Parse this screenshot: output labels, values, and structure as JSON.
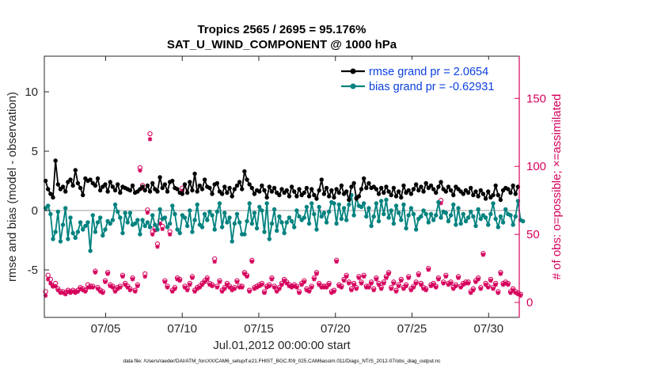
{
  "chart_data": {
    "type": "line",
    "title_line1": "Tropics 2565 / 2695 = 95.176%",
    "title_line2": "SAT_U_WIND_COMPONENT @ 1000 hPa",
    "xlabel": "Jul.01,2012 00:00:00 start",
    "ylabel_left": "rmse and bias (model - observation)",
    "ylabel_right": "# of obs: o=possible; ×=assimilated",
    "footer": "data file: /Users/raeder/DAI/ATM_forcXX/CAM6_setup/f.e21.FHIST_BGC.f09_025.CAM6assim.011/Diags_NTrS_2012-07/obs_diag_output.nc",
    "xlim": [
      1.0,
      32.0
    ],
    "ylim_left": [
      -9.0,
      13.0
    ],
    "ylim_right": [
      -11.0,
      181.0
    ],
    "x_ticks": [
      5,
      10,
      15,
      20,
      25,
      30
    ],
    "x_tick_labels": [
      "07/05",
      "07/10",
      "07/15",
      "07/20",
      "07/25",
      "07/30"
    ],
    "y_left_ticks": [
      -5,
      0,
      5,
      10
    ],
    "y_left_tick_labels": [
      "-5",
      "0",
      "5",
      "10"
    ],
    "y_right_ticks": [
      0,
      50,
      100,
      150
    ],
    "y_right_tick_labels": [
      "0",
      "50",
      "100",
      "150"
    ],
    "zero_line": true,
    "legend": [
      {
        "label": "rmse grand pr = 2.0654",
        "series": "rmse"
      },
      {
        "label": "bias grand pr = -0.62931",
        "series": "bias"
      }
    ],
    "colors": {
      "rmse": "#000000",
      "bias": "#00827f",
      "obs": "#d6005c",
      "axis": "#262626",
      "legend_text": "#0a3fe0",
      "zero_line": "#bdbdbd"
    },
    "series": [
      {
        "name": "rmse",
        "values": [
          2.5,
          1.8,
          1.4,
          1.1,
          4.2,
          2.2,
          1.8,
          2.0,
          1.6,
          2.4,
          2.6,
          2.1,
          3.4,
          2.3,
          1.9,
          1.3,
          2.7,
          2.5,
          2.6,
          2.3,
          2.1,
          2.7,
          1.7,
          2.0,
          2.2,
          1.6,
          2.4,
          2.0,
          1.7,
          2.2,
          1.5,
          2.0,
          1.9,
          1.8,
          1.7,
          2.1,
          1.5,
          1.6,
          1.8,
          2.0,
          1.7,
          2.1,
          1.6,
          2.3,
          1.8,
          1.6,
          2.8,
          1.9,
          2.2,
          1.6,
          2.4,
          2.5,
          1.9,
          1.8,
          1.5,
          1.4,
          2.2,
          1.5,
          2.4,
          1.7,
          3.1,
          1.6,
          2.1,
          1.8,
          2.6,
          2.0,
          1.9,
          1.4,
          2.2,
          2.3,
          1.6,
          1.4,
          2.0,
          1.5,
          1.9,
          1.2,
          1.8,
          2.1,
          2.4,
          1.8,
          3.3,
          2.6,
          2.2,
          1.9,
          1.4,
          1.7,
          1.6,
          2.1,
          1.7,
          1.1,
          2.0,
          1.6,
          1.9,
          1.5,
          1.3,
          1.8,
          1.5,
          1.7,
          1.2,
          2.0,
          1.6,
          1.2,
          1.8,
          1.3,
          1.5,
          1.9,
          1.2,
          1.8,
          1.3,
          1.0,
          1.7,
          2.6,
          1.4,
          1.9,
          1.2,
          1.7,
          1.1,
          1.8,
          1.5,
          2.1,
          1.4,
          1.6,
          0.9,
          2.0,
          2.3,
          1.0,
          1.2,
          1.8,
          2.7,
          1.9,
          2.3,
          1.9,
          2.0,
          1.8,
          1.4,
          1.9,
          1.5,
          2.0,
          1.6,
          1.3,
          1.9,
          1.2,
          1.6,
          1.1,
          2.1,
          1.5,
          1.7,
          1.4,
          1.8,
          2.2,
          1.7,
          2.0,
          1.6,
          2.3,
          1.9,
          2.1,
          1.8,
          1.5,
          2.0,
          2.4,
          1.8,
          1.6,
          2.0,
          1.7,
          1.3,
          2.0,
          1.8,
          1.6,
          1.4,
          1.7,
          1.5,
          1.9,
          1.3,
          1.6,
          1.2,
          1.7,
          1.4,
          1.0,
          1.6,
          1.1,
          1.3,
          2.1,
          1.3,
          0.9,
          1.7,
          1.9,
          1.8,
          1.5,
          2.1,
          1.4,
          2.0
        ]
      },
      {
        "name": "bias",
        "values": [
          0.2,
          0.4,
          -0.3,
          -2.4,
          -1.8,
          -0.1,
          -2.6,
          -1.2,
          0.2,
          -2.4,
          -0.6,
          -1.9,
          -2.3,
          -1.8,
          -1.0,
          -1.6,
          -1.3,
          -1.0,
          -3.4,
          -0.4,
          -1.8,
          -1.0,
          -0.6,
          -2.1,
          -1.6,
          -0.9,
          -1.1,
          -0.8,
          0.5,
          -0.1,
          -0.6,
          -1.9,
          -0.2,
          -1.0,
          -0.2,
          -1.2,
          -1.1,
          -0.8,
          -2.0,
          -0.8,
          -1.3,
          -1.0,
          -1.4,
          -0.4,
          -1.2,
          -1.6,
          0.1,
          -0.7,
          -0.6,
          -1.4,
          -1.1,
          0.4,
          -0.3,
          -1.6,
          -1.9,
          -0.4,
          -0.6,
          -1.3,
          0.0,
          -1.8,
          -0.8,
          0.5,
          -1.2,
          -1.4,
          -0.3,
          -0.8,
          -0.1,
          -0.4,
          -1.6,
          -0.1,
          0.6,
          -1.4,
          -0.2,
          -1.0,
          -0.6,
          -2.6,
          -1.1,
          -0.3,
          -1.0,
          -2.0,
          -2.0,
          -0.9,
          0.6,
          -1.1,
          -0.2,
          -1.5,
          0.3,
          0.0,
          -1.8,
          0.6,
          -2.4,
          -1.1,
          0.1,
          -1.7,
          -0.5,
          -1.0,
          -1.9,
          -1.0,
          -0.6,
          -0.9,
          -1.4,
          0.0,
          -0.5,
          -0.8,
          -0.6,
          0.3,
          -1.1,
          0.6,
          -0.3,
          -1.6,
          0.3,
          -0.5,
          -0.2,
          -1.0,
          -0.1,
          0.7,
          0.6,
          -1.1,
          0.5,
          -0.7,
          0.2,
          -0.8,
          0.5,
          1.3,
          -0.4,
          1.1,
          0.4,
          0.3,
          0.6,
          -0.5,
          0.2,
          -1.3,
          -0.5,
          0.6,
          -0.9,
          0.8,
          -0.3,
          0.9,
          -0.6,
          0.0,
          -1.1,
          0.4,
          -0.2,
          -0.8,
          0.5,
          -1.5,
          -0.4,
          0.2,
          -0.3,
          -1.6,
          -0.7,
          -0.5,
          0.0,
          -0.3,
          -1.0,
          -0.3,
          -0.8,
          -0.4,
          0.7,
          -0.6,
          -0.1,
          -0.2,
          -0.9,
          -0.4,
          0.5,
          -1.2,
          0.2,
          -1.1,
          -0.3,
          -0.9,
          -0.6,
          -0.1,
          -0.5,
          -1.3,
          0.1,
          -0.7,
          -0.4,
          -0.6,
          -1.2,
          -0.3,
          0.6,
          -0.7,
          -1.4,
          -0.5,
          -1.0,
          0.1,
          -0.3,
          -0.4,
          -1.2,
          -0.5,
          0.8,
          -0.8,
          -0.9
        ]
      },
      {
        "name": "obs_possible",
        "values": [
          8,
          20,
          17,
          12,
          14,
          10,
          8,
          8,
          7,
          9,
          8,
          9,
          8,
          9,
          11,
          10,
          9,
          13,
          12,
          12,
          23,
          11,
          9,
          8,
          16,
          22,
          13,
          12,
          9,
          11,
          12,
          20,
          14,
          12,
          10,
          18,
          9,
          13,
          99,
          86,
          21,
          68,
          124,
          52,
          55,
          43,
          60,
          56,
          16,
          12,
          52,
          9,
          11,
          18,
          17,
          84,
          12,
          10,
          14,
          19,
          9,
          11,
          12,
          14,
          16,
          18,
          14,
          13,
          32,
          12,
          16,
          9,
          11,
          14,
          12,
          10,
          11,
          16,
          12,
          12,
          22,
          20,
          9,
          31,
          11,
          12,
          13,
          14,
          8,
          12,
          13,
          18,
          12,
          9,
          11,
          14,
          17,
          15,
          13,
          12,
          13,
          12,
          8,
          14,
          16,
          10,
          9,
          12,
          18,
          22,
          14,
          12,
          12,
          12,
          14,
          8,
          9,
          31,
          13,
          12,
          17,
          20,
          15,
          10,
          14,
          11,
          19,
          15,
          20,
          12,
          12,
          15,
          10,
          18,
          14,
          11,
          15,
          19,
          22,
          11,
          15,
          9,
          13,
          17,
          11,
          13,
          19,
          10,
          12,
          15,
          21,
          14,
          11,
          10,
          25,
          13,
          14,
          12,
          18,
          75,
          15,
          20,
          14,
          15,
          11,
          13,
          19,
          12,
          14,
          15,
          15,
          8,
          10,
          16,
          18,
          11,
          36,
          14,
          12,
          17,
          11,
          14,
          8,
          22,
          14,
          15,
          14,
          8,
          10,
          8,
          7,
          6
        ]
      },
      {
        "name": "obs_assimilated",
        "values": [
          5,
          17,
          14,
          12,
          12,
          9,
          7,
          7,
          6,
          8,
          7,
          8,
          7,
          8,
          10,
          9,
          8,
          11,
          11,
          11,
          22,
          10,
          8,
          7,
          15,
          21,
          12,
          11,
          8,
          10,
          11,
          19,
          13,
          11,
          9,
          17,
          8,
          12,
          97,
          84,
          19,
          66,
          120,
          50,
          53,
          41,
          58,
          54,
          15,
          11,
          50,
          8,
          10,
          17,
          16,
          82,
          11,
          9,
          13,
          18,
          8,
          10,
          11,
          13,
          15,
          17,
          13,
          12,
          30,
          11,
          15,
          8,
          10,
          13,
          11,
          9,
          10,
          15,
          11,
          11,
          21,
          19,
          8,
          30,
          10,
          11,
          12,
          13,
          7,
          11,
          12,
          17,
          11,
          8,
          10,
          13,
          16,
          14,
          12,
          11,
          12,
          11,
          7,
          13,
          15,
          9,
          8,
          11,
          17,
          21,
          13,
          11,
          11,
          11,
          13,
          7,
          8,
          30,
          12,
          11,
          16,
          19,
          14,
          9,
          13,
          10,
          18,
          14,
          19,
          11,
          11,
          14,
          9,
          17,
          13,
          10,
          14,
          18,
          21,
          10,
          14,
          8,
          12,
          16,
          10,
          12,
          18,
          9,
          11,
          14,
          20,
          13,
          10,
          9,
          24,
          12,
          13,
          11,
          17,
          73,
          14,
          19,
          13,
          14,
          10,
          12,
          18,
          11,
          13,
          14,
          14,
          7,
          9,
          15,
          17,
          10,
          35,
          13,
          11,
          16,
          10,
          13,
          7,
          21,
          13,
          14,
          13,
          7,
          9,
          7,
          6,
          5
        ]
      }
    ]
  }
}
